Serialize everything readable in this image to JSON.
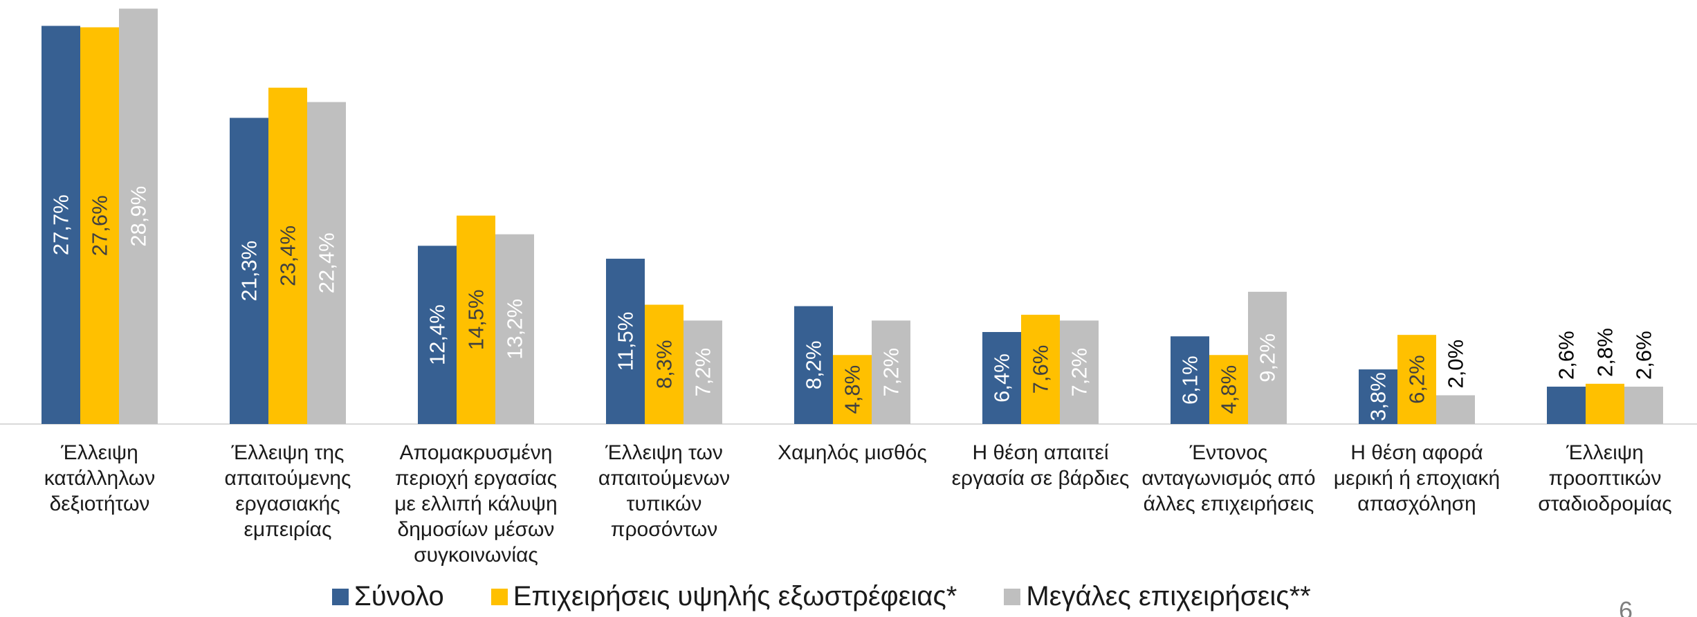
{
  "chart_data": {
    "type": "bar",
    "categories": [
      "Έλλειψη κατάλληλων δεξιοτήτων",
      "Έλλειψη της απαιτούμενης εργασιακής εμπειρίας",
      "Απομακρυσμένη περιοχή εργασίας με ελλιπή κάλυψη δημοσίων μέσων συγκοινωνίας",
      "Έλλειψη των απαιτούμενων τυπικών προσόντων",
      "Χαμηλός μισθός",
      "Η θέση απαιτεί εργασία σε βάρδιες",
      "Έντονος ανταγωνισμός από άλλες επιχειρήσεις",
      "Η θέση αφορά μερική ή εποχιακή απασχόληση",
      "Έλλειψη προοπτικών σταδιοδρομίας"
    ],
    "series": [
      {
        "name": "Σύνολο",
        "color": "#376092",
        "values": [
          27.7,
          21.3,
          12.4,
          11.5,
          8.2,
          6.4,
          6.1,
          3.8,
          2.6
        ],
        "value_labels": [
          "27,7%",
          "21,3%",
          "12,4%",
          "11,5%",
          "8,2%",
          "6,4%",
          "6,1%",
          "3,8%",
          "2,6%"
        ]
      },
      {
        "name": "Επιχειρήσεις υψηλής εξωστρέφειας*",
        "color": "#FFC000",
        "values": [
          27.6,
          23.4,
          14.5,
          8.3,
          4.8,
          7.6,
          4.8,
          6.2,
          2.8
        ],
        "value_labels": [
          "27,6%",
          "23,4%",
          "14,5%",
          "8,3%",
          "4,8%",
          "7,6%",
          "4,8%",
          "6,2%",
          "2,8%"
        ]
      },
      {
        "name": "Μεγάλες επιχειρήσεις**",
        "color": "#BFBFBF",
        "values": [
          28.9,
          22.4,
          13.2,
          7.2,
          7.2,
          7.2,
          9.2,
          2.0,
          2.6
        ],
        "value_labels": [
          "28,9%",
          "22,4%",
          "13,2%",
          "7,2%",
          "7,2%",
          "7,2%",
          "9,2%",
          "2,0%",
          "2,6%"
        ]
      }
    ],
    "ylim": [
      0,
      29.5
    ]
  },
  "page_number": "6"
}
